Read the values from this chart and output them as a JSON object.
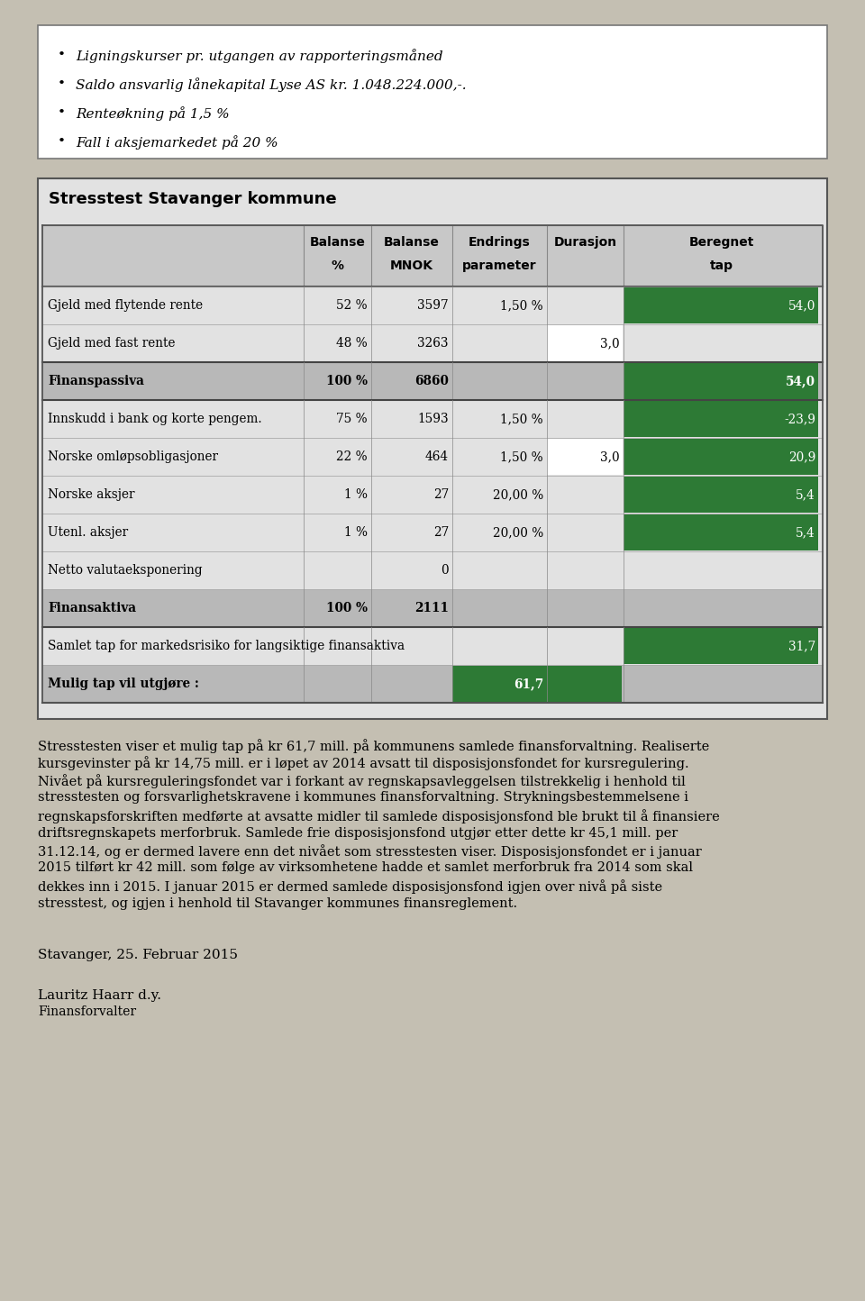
{
  "bullet_points": [
    "Ligningskurser pr. utgangen av rapporteringsmåned",
    "Saldo ansvarlig lånekapital Lyse AS kr. 1.048.224.000,-.",
    "Renteøkning på 1,5 %",
    "Fall i aksjemarkedet på 20 %"
  ],
  "table_title": "Stresstest Stavanger kommune",
  "rows": [
    {
      "label": "Gjeld med flytende rente",
      "bal_pct": "52 %",
      "bal_mnok": "3597",
      "endrings": "1,50 %",
      "durasjon": "",
      "beregnet": "54,0",
      "green_ber": true,
      "bold": false,
      "white_dur": false,
      "endrings_green": false,
      "separator_after": false
    },
    {
      "label": "Gjeld med fast rente",
      "bal_pct": "48 %",
      "bal_mnok": "3263",
      "endrings": "",
      "durasjon": "3,0",
      "beregnet": "",
      "green_ber": false,
      "bold": false,
      "white_dur": true,
      "endrings_green": false,
      "separator_after": true
    },
    {
      "label": "Finanspassiva",
      "bal_pct": "100 %",
      "bal_mnok": "6860",
      "endrings": "",
      "durasjon": "",
      "beregnet": "54,0",
      "green_ber": true,
      "bold": true,
      "white_dur": false,
      "endrings_green": false,
      "separator_after": true
    },
    {
      "label": "Innskudd i bank og korte pengem.",
      "bal_pct": "75 %",
      "bal_mnok": "1593",
      "endrings": "1,50 %",
      "durasjon": "",
      "beregnet": "-23,9",
      "green_ber": true,
      "bold": false,
      "white_dur": false,
      "endrings_green": false,
      "separator_after": false
    },
    {
      "label": "Norske omløpsobligasjoner",
      "bal_pct": "22 %",
      "bal_mnok": "464",
      "endrings": "1,50 %",
      "durasjon": "3,0",
      "beregnet": "20,9",
      "green_ber": true,
      "bold": false,
      "white_dur": true,
      "endrings_green": false,
      "separator_after": false
    },
    {
      "label": "Norske aksjer",
      "bal_pct": "1 %",
      "bal_mnok": "27",
      "endrings": "20,00 %",
      "durasjon": "",
      "beregnet": "5,4",
      "green_ber": true,
      "bold": false,
      "white_dur": false,
      "endrings_green": false,
      "separator_after": false
    },
    {
      "label": "Utenl. aksjer",
      "bal_pct": "1 %",
      "bal_mnok": "27",
      "endrings": "20,00 %",
      "durasjon": "",
      "beregnet": "5,4",
      "green_ber": true,
      "bold": false,
      "white_dur": false,
      "endrings_green": false,
      "separator_after": false
    },
    {
      "label": "Netto valutaeksponering",
      "bal_pct": "",
      "bal_mnok": "0",
      "endrings": "",
      "durasjon": "",
      "beregnet": "",
      "green_ber": false,
      "bold": false,
      "white_dur": false,
      "endrings_green": false,
      "separator_after": false
    },
    {
      "label": "Finansaktiva",
      "bal_pct": "100 %",
      "bal_mnok": "2111",
      "endrings": "",
      "durasjon": "",
      "beregnet": "",
      "green_ber": false,
      "bold": true,
      "white_dur": false,
      "endrings_green": false,
      "separator_after": true
    },
    {
      "label": "Samlet tap for markedsrisiko for langsiktige finansaktiva",
      "bal_pct": "",
      "bal_mnok": "",
      "endrings": "",
      "durasjon": "",
      "beregnet": "31,7",
      "green_ber": true,
      "bold": false,
      "white_dur": false,
      "endrings_green": false,
      "separator_after": false
    },
    {
      "label": "Mulig tap vil utgjøre :",
      "bal_pct": "",
      "bal_mnok": "",
      "endrings": "61,7",
      "durasjon": "",
      "beregnet": "",
      "green_ber": false,
      "bold": true,
      "white_dur": false,
      "endrings_green": true,
      "separator_after": false
    }
  ],
  "body_text_lines": [
    "Stresstesten viser et mulig tap på kr 61,7 mill. på kommunens samlede finansforvaltning. Realiserte",
    "kursgevinster på kr 14,75 mill. er i løpet av 2014 avsatt til disposisjonsfondet for kursregulering.",
    "Nivået på kursreguleringsfondet var i forkant av regnskapsavleggelsen tilstrekkelig i henhold til",
    "stresstesten og forsvarlighetskravene i kommunes finansforvaltning. Strykningsbestemmelsene i",
    "regnskapsforskriften medførte at avsatte midler til samlede disposisjonsfond ble brukt til å finansiere",
    "driftsregnskapets merforbruk. Samlede frie disposisjonsfond utgjør etter dette kr 45,1 mill. per",
    "31.12.14, og er dermed lavere enn det nivået som stresstesten viser. Disposisjonsfondet er i januar",
    "2015 tilført kr 42 mill. som følge av virksomhetene hadde et samlet merforbruk fra 2014 som skal",
    "dekkes inn i 2015. I januar 2015 er dermed samlede disposisjonsfond igjen over nivå på siste",
    "stresstest, og igjen i henhold til Stavanger kommunes finansreglement."
  ],
  "footer_date": "Stavanger, 25. Februar 2015",
  "footer_name": "Lauritz Haarr d.y.",
  "footer_title": "Finansforvalter",
  "page_bg": "#c4bfb2",
  "green_color": "#2d7a35",
  "white": "#ffffff",
  "light_gray": "#e2e2e2",
  "medium_gray": "#c8c8c8",
  "dark_gray": "#b8b8b8"
}
